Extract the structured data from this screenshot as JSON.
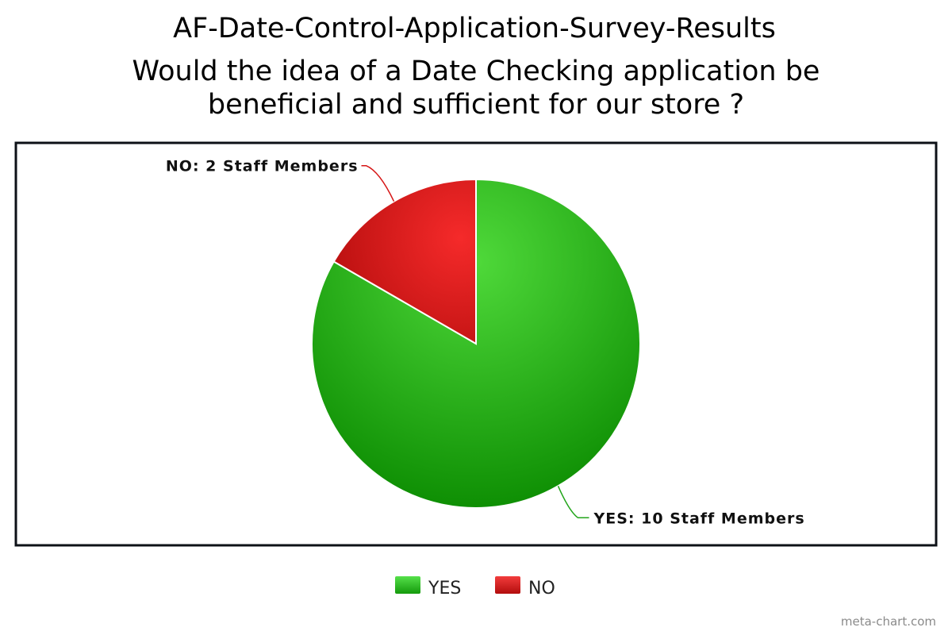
{
  "chart_data": {
    "type": "pie",
    "title": "AF-Date-Control-Application-Survey-Results",
    "subtitle_lines": [
      "Would the idea of a Date Checking application be",
      "beneficial and sufficient for our store ?"
    ],
    "slices": [
      {
        "name": "YES",
        "value": 10,
        "label": "YES: 10 Staff Members",
        "color": "#22a51b"
      },
      {
        "name": "NO",
        "value": 2,
        "label": "NO: 2 Staff Members",
        "color": "#d61515"
      }
    ],
    "legend": {
      "position": "bottom",
      "items": [
        "YES",
        "NO"
      ]
    },
    "watermark": "meta-chart.com"
  }
}
